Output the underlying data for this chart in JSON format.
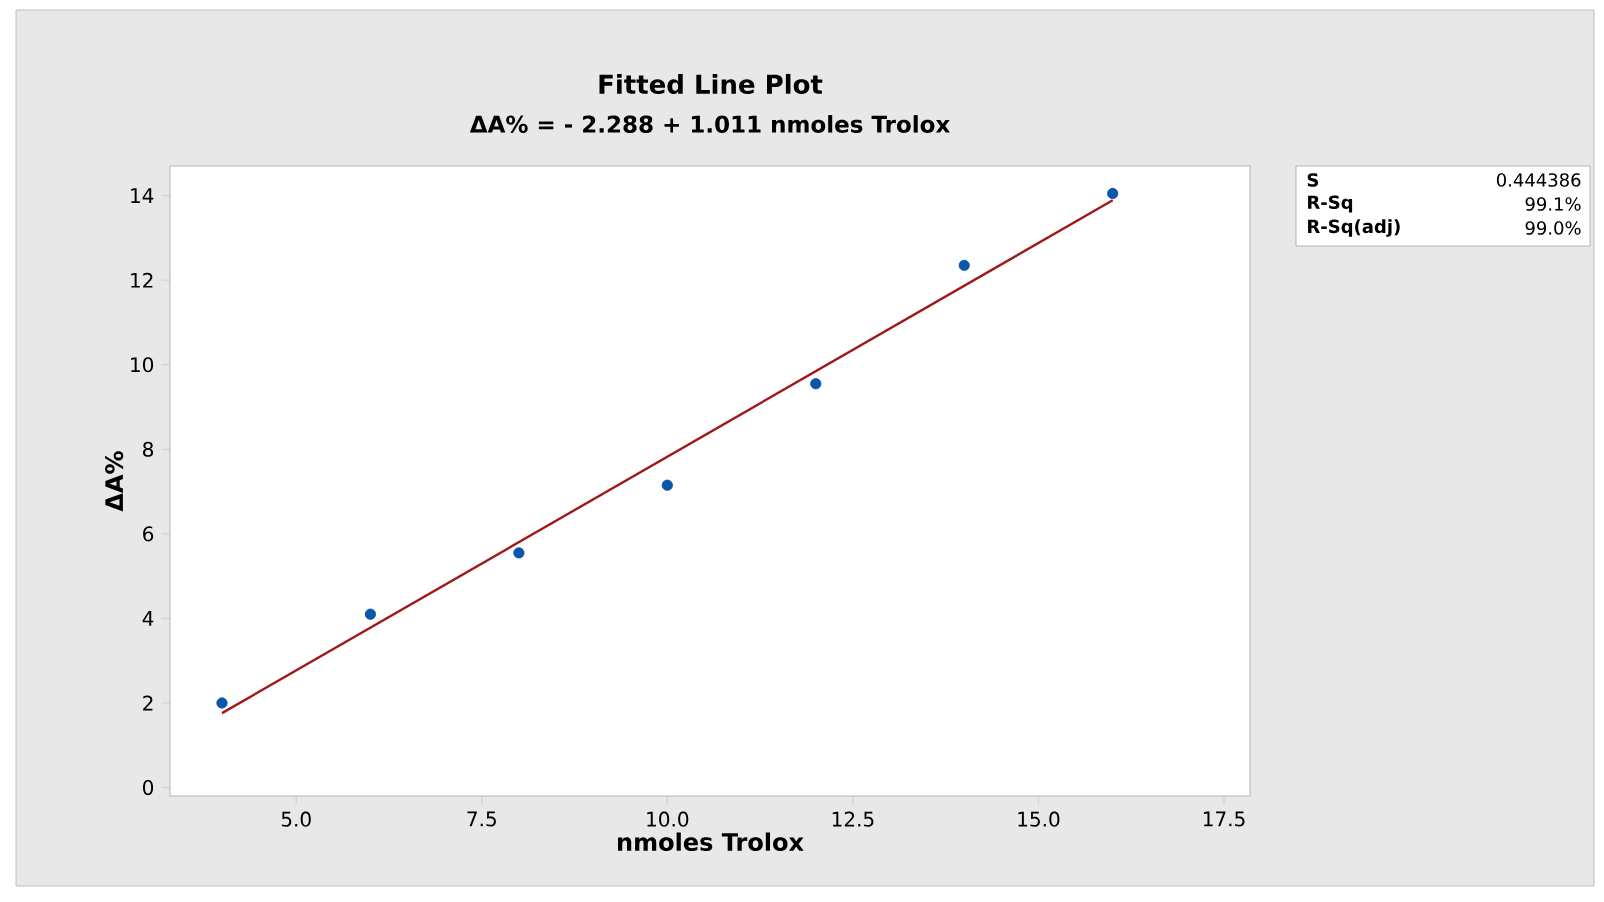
{
  "chart_data": {
    "type": "scatter",
    "title": "Fitted Line Plot",
    "subtitle": "ΔA% = - 2.288 + 1.011 nmoles Trolox",
    "xlabel": "nmoles Trolox",
    "ylabel": "ΔA%",
    "xlim": [
      3.3,
      17.85
    ],
    "ylim": [
      -0.2,
      14.7
    ],
    "xticks": [
      {
        "value": 5,
        "label": "5.0"
      },
      {
        "value": 7.5,
        "label": "7.5"
      },
      {
        "value": 10,
        "label": "10.0"
      },
      {
        "value": 12.5,
        "label": "12.5"
      },
      {
        "value": 15,
        "label": "15.0"
      },
      {
        "value": 17.5,
        "label": "17.5"
      }
    ],
    "yticks": [
      0,
      2,
      4,
      6,
      8,
      10,
      12,
      14
    ],
    "grid": false,
    "series": [
      {
        "marker": "circle",
        "color": "#0a56a8",
        "x": [
          4,
          6,
          8,
          10,
          12,
          14,
          16
        ],
        "values": [
          2.0,
          4.1,
          5.55,
          7.15,
          9.55,
          12.35,
          14.05
        ]
      },
      {
        "type": "line",
        "color": "#a01818",
        "line_style": "solid",
        "marker": "none",
        "x": [
          4,
          16
        ],
        "values": [
          1.76,
          13.89
        ]
      }
    ],
    "annotations": [
      "S",
      "0.444386",
      "R-Sq",
      "99.1%",
      "R-Sq(adj)",
      "99.0%"
    ]
  }
}
